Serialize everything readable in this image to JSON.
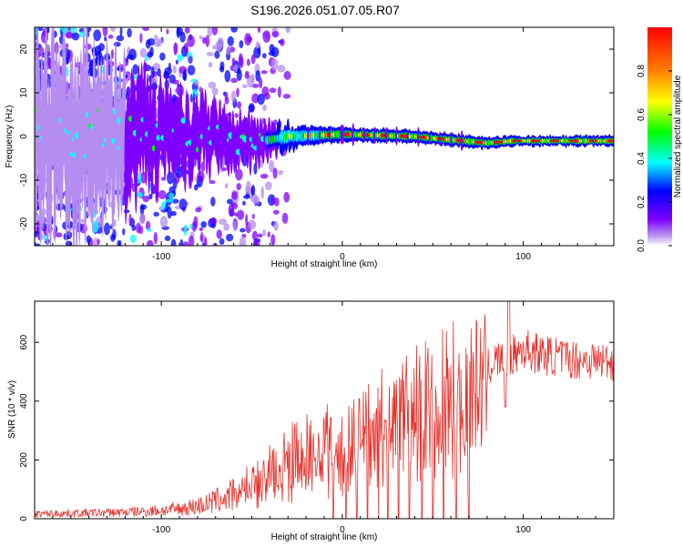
{
  "page": {
    "title": "S196.2026.051.07.05.R07"
  },
  "chart_data": [
    {
      "type": "heatmap",
      "name": "spectrogram",
      "xlabel": "Height of straight line (km)",
      "ylabel": "Frequency (Hz)",
      "xlim": [
        -170,
        150
      ],
      "ylim": [
        -25,
        25
      ],
      "xticks": [
        -100,
        0,
        100
      ],
      "xtick_labels": [
        "-100",
        "0",
        "100"
      ],
      "yticks": [
        -20,
        -10,
        0,
        10,
        20
      ],
      "ytick_labels": [
        "-20",
        "-10",
        "0",
        "10",
        "20"
      ],
      "colorbar": {
        "label": "Normalized spectral amplitude",
        "range": [
          0,
          1
        ],
        "ticks": [
          0.0,
          0.2,
          0.4,
          0.6,
          0.8
        ],
        "tick_labels": [
          "0.0",
          "0.2",
          "0.4",
          "0.6",
          "0.8"
        ],
        "colors": [
          "#ffffff",
          "#b58cf0",
          "#8000ff",
          "#0000ff",
          "#00ffff",
          "#00ff00",
          "#ffff00",
          "#ff8000",
          "#ff0000"
        ]
      },
      "signal_track": [
        {
          "x": -140,
          "f": 0.0,
          "spread": 15,
          "amp": 0.15
        },
        {
          "x": -100,
          "f": 0.0,
          "spread": 8,
          "amp": 0.25
        },
        {
          "x": -75,
          "f": 0.0,
          "spread": 6,
          "amp": 0.3
        },
        {
          "x": -50,
          "f": -1.5,
          "spread": 4,
          "amp": 0.3
        },
        {
          "x": -30,
          "f": 0.0,
          "spread": 2,
          "amp": 0.55
        },
        {
          "x": 0,
          "f": 0.5,
          "spread": 1.2,
          "amp": 0.9
        },
        {
          "x": 40,
          "f": 0.0,
          "spread": 1.0,
          "amp": 0.95
        },
        {
          "x": 80,
          "f": -1.5,
          "spread": 1.0,
          "amp": 0.95
        },
        {
          "x": 95,
          "f": -1.0,
          "spread": 0.8,
          "amp": 1.0
        },
        {
          "x": 150,
          "f": -1.0,
          "spread": 0.8,
          "amp": 1.0
        }
      ]
    },
    {
      "type": "line",
      "name": "snr",
      "xlabel": "Height of straight line (km)",
      "ylabel": "SNR (10 * v/v)",
      "xlim": [
        -170,
        150
      ],
      "ylim": [
        0,
        740
      ],
      "xticks": [
        -100,
        0,
        100
      ],
      "xtick_labels": [
        "-100",
        "0",
        "100"
      ],
      "yticks": [
        0,
        200,
        400,
        600
      ],
      "ytick_labels": [
        "0",
        "200",
        "400",
        "600"
      ],
      "line_color": "#e8302a",
      "envelope": {
        "x": [
          -170,
          -130,
          -110,
          -90,
          -75,
          -60,
          -50,
          -40,
          -30,
          -20,
          -10,
          0,
          10,
          20,
          30,
          40,
          50,
          60,
          70,
          80,
          85,
          90,
          95,
          100,
          110,
          120,
          130,
          140,
          150
        ],
        "y": [
          20,
          25,
          30,
          40,
          60,
          100,
          150,
          200,
          240,
          280,
          300,
          330,
          360,
          400,
          430,
          460,
          500,
          510,
          520,
          530,
          560,
          560,
          580,
          600,
          580,
          570,
          560,
          560,
          555
        ]
      },
      "dropout_x": [
        -5,
        2,
        8,
        14,
        20,
        25,
        31,
        37,
        44,
        50,
        56,
        63,
        70
      ],
      "dip_x": [
        90
      ]
    }
  ]
}
